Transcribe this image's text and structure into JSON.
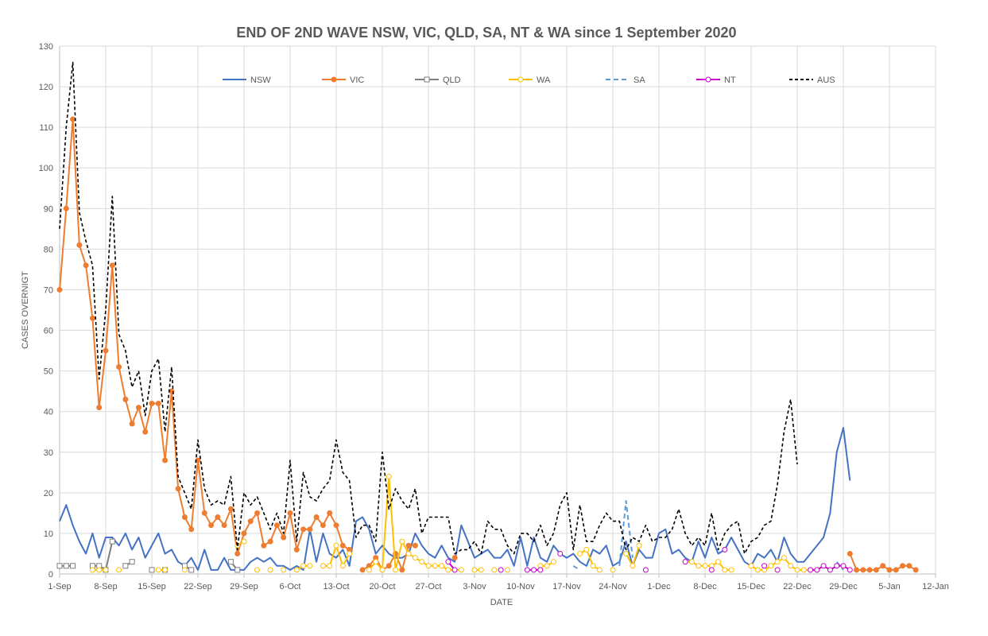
{
  "chart_data": {
    "type": "line",
    "title": "END OF 2ND WAVE NSW, VIC, QLD, SA, NT & WA since 1 September 2020",
    "xlabel": "DATE",
    "ylabel": "CASES OVERNIGT",
    "ylim": [
      0,
      130
    ],
    "y_ticks": [
      0,
      10,
      20,
      30,
      40,
      50,
      60,
      70,
      80,
      90,
      100,
      110,
      120,
      130
    ],
    "x_range_days": [
      0,
      133
    ],
    "x_tick_labels": [
      "1-Sep",
      "8-Sep",
      "15-Sep",
      "22-Sep",
      "29-Sep",
      "6-Oct",
      "13-Oct",
      "20-Oct",
      "27-Oct",
      "3-Nov",
      "10-Nov",
      "17-Nov",
      "24-Nov",
      "1-Dec",
      "8-Dec",
      "15-Dec",
      "22-Dec",
      "29-Dec",
      "5-Jan",
      "12-Jan"
    ],
    "grid": true,
    "legend_position": "top",
    "series": [
      {
        "name": "NSW",
        "color": "#4472C4",
        "dash": "solid",
        "marker": "none",
        "start_day": 0,
        "values": [
          13,
          17,
          12,
          8,
          5,
          10,
          4,
          9,
          9,
          7,
          10,
          6,
          9,
          4,
          7,
          10,
          5,
          6,
          3,
          2,
          4,
          1,
          6,
          1,
          1,
          4,
          1,
          1,
          1,
          3,
          4,
          3,
          4,
          2,
          2,
          1,
          2,
          1,
          11,
          3,
          10,
          5,
          4,
          6,
          2,
          13,
          14,
          11,
          5,
          7,
          5,
          4,
          4,
          5,
          10,
          7,
          5,
          4,
          7,
          4,
          3,
          12,
          8,
          4,
          5,
          6,
          4,
          4,
          6,
          2,
          9,
          2,
          9,
          4,
          3,
          7,
          5,
          4,
          5,
          3,
          2,
          6,
          5,
          7,
          2,
          3,
          8,
          2,
          6,
          4,
          4,
          10,
          11,
          5,
          6,
          4,
          3,
          8,
          4,
          9,
          5,
          6,
          9,
          6,
          3,
          2,
          5,
          4,
          6,
          3,
          9,
          5,
          3,
          3,
          5,
          7,
          9,
          15,
          30,
          36,
          23
        ]
      },
      {
        "name": "VIC",
        "color": "#ED7D31",
        "dash": "solid",
        "marker": "circle-filled",
        "start_day": 0,
        "values": [
          70,
          90,
          112,
          81,
          76,
          63,
          41,
          55,
          76,
          51,
          43,
          37,
          41,
          35,
          42,
          42,
          28,
          45,
          21,
          14,
          11,
          28,
          15,
          12,
          14,
          12,
          16,
          5,
          10,
          13,
          15,
          7,
          8,
          12,
          9,
          15,
          6,
          11,
          11,
          14,
          12,
          15,
          12,
          7,
          6,
          null,
          1,
          2,
          4,
          1,
          2,
          5,
          1,
          7,
          7,
          null,
          null,
          null,
          null,
          null,
          4,
          null,
          null,
          null,
          null,
          null,
          null,
          null,
          null,
          null,
          null,
          null,
          null,
          null,
          null,
          null,
          null,
          null,
          null,
          null,
          null,
          null,
          null,
          null,
          null,
          null,
          null,
          null,
          null,
          null,
          null,
          null,
          null,
          null,
          null,
          null,
          null,
          null,
          null,
          null,
          null,
          null,
          null,
          null,
          null,
          null,
          null,
          null,
          null,
          null,
          null,
          null,
          null,
          null,
          null,
          null,
          null,
          null,
          null,
          null,
          5,
          1,
          1,
          1,
          1,
          2,
          1,
          1,
          2,
          2,
          1
        ]
      },
      {
        "name": "QLD",
        "color": "#7F7F7F",
        "dash": "solid",
        "marker": "square-open",
        "start_day": 0,
        "values": [
          2,
          2,
          2,
          null,
          null,
          2,
          2,
          1,
          8,
          null,
          2,
          3,
          null,
          null,
          1,
          null,
          1,
          null,
          null,
          2,
          1,
          null,
          null,
          null,
          null,
          null,
          3,
          1
        ]
      },
      {
        "name": "WA",
        "color": "#FFC000",
        "dash": "solid",
        "marker": "circle-open",
        "start_day": 0,
        "values": [
          null,
          null,
          null,
          null,
          null,
          1,
          1,
          1,
          null,
          1,
          null,
          null,
          null,
          null,
          null,
          1,
          1,
          null,
          null,
          1,
          null,
          null,
          null,
          null,
          null,
          null,
          null,
          7,
          8,
          null,
          1,
          null,
          1,
          null,
          1,
          null,
          1,
          2,
          2,
          null,
          2,
          2,
          7,
          2,
          5,
          null,
          null,
          1,
          3,
          1,
          24,
          1,
          8,
          5,
          4,
          3,
          2,
          2,
          2,
          1,
          1,
          1,
          null,
          1,
          1,
          null,
          1,
          null,
          1,
          null,
          null,
          null,
          null,
          2,
          2,
          3,
          null,
          null,
          null,
          5,
          6,
          2,
          1,
          null,
          1,
          null,
          5,
          2,
          7,
          null,
          null,
          null,
          null,
          null,
          null,
          3,
          3,
          2,
          2,
          2,
          3,
          1,
          1,
          null,
          null,
          2,
          1,
          1,
          2,
          3,
          4,
          2,
          1,
          1,
          1
        ]
      },
      {
        "name": "SA",
        "color": "#5B9BD5",
        "dash": "dashed",
        "marker": "none",
        "start_day": 0,
        "values": [
          null,
          null,
          null,
          null,
          null,
          null,
          null,
          null,
          null,
          null,
          null,
          null,
          null,
          null,
          null,
          null,
          null,
          null,
          null,
          null,
          null,
          null,
          null,
          null,
          null,
          null,
          null,
          null,
          null,
          null,
          null,
          null,
          null,
          null,
          null,
          null,
          null,
          null,
          null,
          null,
          null,
          null,
          null,
          null,
          null,
          null,
          null,
          null,
          null,
          null,
          null,
          null,
          null,
          null,
          null,
          null,
          null,
          null,
          null,
          null,
          null,
          null,
          null,
          null,
          null,
          null,
          null,
          null,
          null,
          null,
          null,
          null,
          null,
          null,
          null,
          null,
          null,
          null,
          2,
          1,
          null,
          null,
          null,
          null,
          null,
          2,
          18,
          4,
          null,
          null,
          null,
          null,
          null,
          null,
          null,
          null,
          null,
          null,
          null,
          null,
          null,
          null,
          null,
          null,
          null,
          null,
          null,
          null,
          null,
          null,
          null,
          null,
          null,
          null,
          null,
          null,
          null,
          null,
          3,
          1
        ]
      },
      {
        "name": "NT",
        "color": "#CC00CC",
        "dash": "solid",
        "marker": "circle-open",
        "start_day": 0,
        "values": [
          null,
          null,
          null,
          null,
          null,
          null,
          null,
          null,
          null,
          null,
          null,
          null,
          null,
          null,
          null,
          null,
          null,
          null,
          null,
          null,
          null,
          null,
          null,
          null,
          null,
          null,
          null,
          null,
          null,
          null,
          null,
          null,
          null,
          null,
          null,
          null,
          null,
          null,
          null,
          null,
          null,
          null,
          null,
          null,
          null,
          null,
          null,
          null,
          null,
          null,
          null,
          null,
          null,
          null,
          null,
          null,
          null,
          null,
          null,
          3,
          1,
          null,
          null,
          null,
          null,
          null,
          null,
          1,
          null,
          null,
          null,
          1,
          1,
          1,
          null,
          null,
          5,
          null,
          null,
          null,
          null,
          null,
          null,
          null,
          null,
          null,
          null,
          null,
          null,
          1,
          null,
          null,
          null,
          null,
          null,
          3,
          null,
          null,
          null,
          1,
          null,
          6,
          null,
          null,
          null,
          null,
          null,
          2,
          null,
          1,
          null,
          null,
          null,
          null,
          1,
          1,
          2,
          1,
          2,
          2,
          1
        ]
      },
      {
        "name": "AUS",
        "color": "#000000",
        "dash": "dashed",
        "marker": "none",
        "start_day": 0,
        "values": [
          85,
          110,
          126,
          89,
          82,
          76,
          48,
          65,
          93,
          59,
          55,
          46,
          50,
          39,
          50,
          53,
          35,
          51,
          24,
          20,
          16,
          33,
          21,
          17,
          18,
          17,
          24,
          6,
          20,
          17,
          19,
          15,
          11,
          15,
          10,
          28,
          8,
          25,
          19,
          18,
          21,
          23,
          33,
          25,
          23,
          9,
          12,
          12,
          8,
          30,
          16,
          21,
          18,
          16,
          21,
          10,
          14,
          14,
          14,
          14,
          5,
          6,
          6,
          8,
          5,
          13,
          11,
          11,
          7,
          5,
          10,
          10,
          8,
          12,
          7,
          10,
          17,
          20,
          6,
          17,
          8,
          8,
          12,
          15,
          13,
          13,
          6,
          9,
          8,
          12,
          8,
          9,
          9,
          11,
          16,
          10,
          7,
          9,
          7,
          15,
          6,
          10,
          12,
          13,
          5,
          8,
          9,
          12,
          13,
          22,
          35,
          43,
          27
        ]
      }
    ]
  }
}
